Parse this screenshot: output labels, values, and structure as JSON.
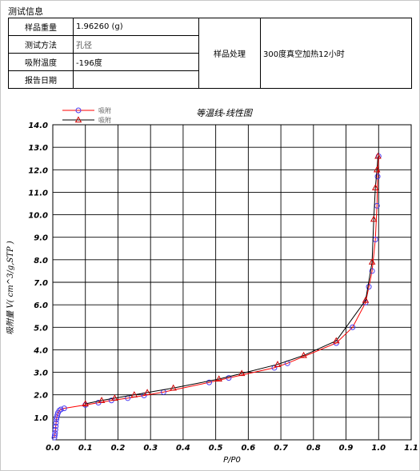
{
  "section_title": "测试信息",
  "info": {
    "sample_weight_label": "样品重量",
    "sample_weight_value": "1.96260 (g)",
    "test_method_label": "测试方法",
    "test_method_value": "孔径",
    "adsorption_temp_label": "吸附温度",
    "adsorption_temp_value": "-196度",
    "report_date_label": "报告日期",
    "report_date_value": "",
    "sample_treatment_label": "样品处理",
    "sample_treatment_value": "300度真空加热12小时"
  },
  "chart_data": {
    "type": "line",
    "title": "等温线-线性图",
    "xlabel": "P/P0",
    "ylabel": "吸附量 V( cm^3/g,STP )",
    "xlim": [
      0.0,
      1.1
    ],
    "ylim": [
      0.0,
      14.0
    ],
    "xticks": [
      0.0,
      0.1,
      0.2,
      0.3,
      0.4,
      0.5,
      0.6,
      0.7,
      0.8,
      0.9,
      1.0,
      1.1
    ],
    "xtick_labels": [
      "0.0",
      "0.1",
      "0.2",
      "0.3",
      "0.4",
      "0.5",
      "0.6",
      "0.7",
      "0.8",
      "0.9",
      "1.0",
      "1.1"
    ],
    "yticks": [
      1.0,
      2.0,
      3.0,
      4.0,
      5.0,
      6.0,
      7.0,
      8.0,
      9.0,
      10.0,
      11.0,
      12.0,
      13.0,
      14.0
    ],
    "ytick_labels": [
      "1.0",
      "2.0",
      "3.0",
      "4.0",
      "5.0",
      "6.0",
      "7.0",
      "8.0",
      "9.0",
      "10.0",
      "11.0",
      "12.0",
      "13.0",
      "14.0"
    ],
    "grid": true,
    "legend_position": "top-left",
    "series": [
      {
        "name": "吸附",
        "color": "#ff0000",
        "marker": "circle",
        "marker_color": "#4b3cf0",
        "x": [
          0.005,
          0.006,
          0.007,
          0.008,
          0.009,
          0.01,
          0.011,
          0.012,
          0.014,
          0.016,
          0.02,
          0.025,
          0.035,
          0.1,
          0.14,
          0.18,
          0.23,
          0.28,
          0.34,
          0.48,
          0.54,
          0.68,
          0.72,
          0.87,
          0.92,
          0.96,
          0.97,
          0.98,
          0.99,
          0.995,
          0.997,
          1.0
        ],
        "y": [
          0.1,
          0.2,
          0.3,
          0.45,
          0.6,
          0.75,
          0.9,
          1.0,
          1.1,
          1.2,
          1.3,
          1.35,
          1.4,
          1.55,
          1.65,
          1.75,
          1.85,
          1.97,
          2.12,
          2.55,
          2.75,
          3.2,
          3.4,
          4.3,
          5.0,
          6.1,
          6.8,
          7.5,
          8.9,
          10.4,
          11.7,
          12.6
        ]
      },
      {
        "name": "吸附",
        "color": "#000000",
        "marker": "triangle",
        "marker_color": "#cc0000",
        "x": [
          0.1,
          0.15,
          0.19,
          0.25,
          0.29,
          0.37,
          0.51,
          0.58,
          0.69,
          0.77,
          0.87,
          0.96,
          0.98,
          0.985,
          0.99,
          0.995,
          0.998
        ],
        "y": [
          1.6,
          1.75,
          1.85,
          2.0,
          2.1,
          2.3,
          2.7,
          2.95,
          3.35,
          3.75,
          4.4,
          6.2,
          7.9,
          9.8,
          11.2,
          12.0,
          12.6
        ]
      }
    ]
  }
}
